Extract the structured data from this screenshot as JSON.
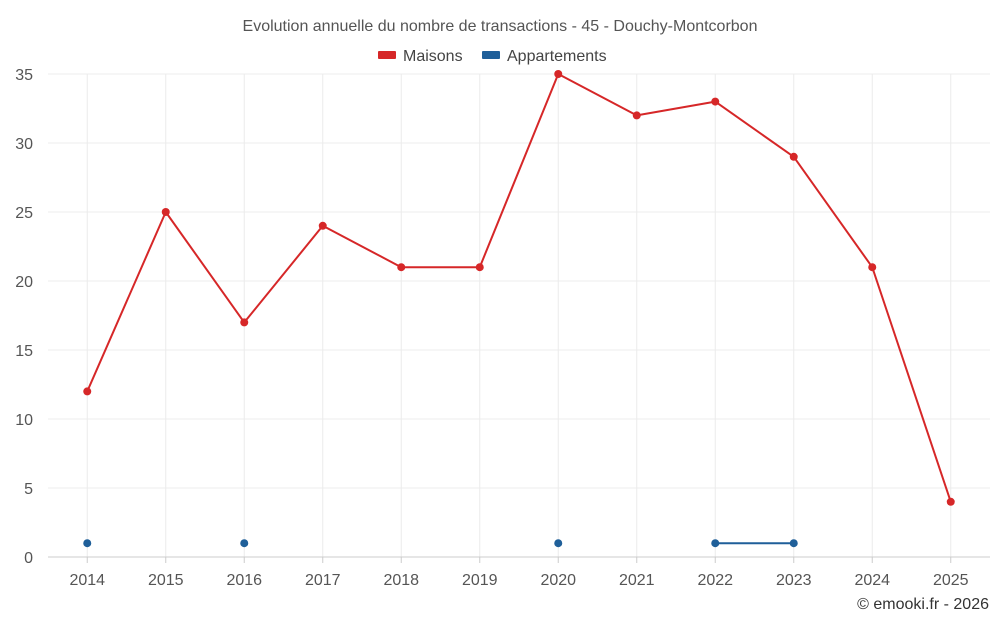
{
  "chart_data": {
    "type": "line",
    "title": "Evolution annuelle du nombre de transactions - 45 - Douchy-Montcorbon",
    "xlabel": "",
    "ylabel": "",
    "categories": [
      "2014",
      "2015",
      "2016",
      "2017",
      "2018",
      "2019",
      "2020",
      "2021",
      "2022",
      "2023",
      "2024",
      "2025"
    ],
    "ylim": [
      0,
      35
    ],
    "yticks": [
      0,
      5,
      10,
      15,
      20,
      25,
      30,
      35
    ],
    "grid": true,
    "legend_position": "top-center",
    "series": [
      {
        "name": "Maisons",
        "color": "#d62728",
        "values": [
          12,
          25,
          17,
          24,
          21,
          21,
          35,
          32,
          33,
          29,
          21,
          4
        ]
      },
      {
        "name": "Appartements",
        "color": "#1f5f99",
        "values": [
          1,
          null,
          1,
          null,
          null,
          null,
          1,
          null,
          1,
          1,
          null,
          null
        ]
      }
    ]
  },
  "credit": "© emooki.fr - 2026"
}
